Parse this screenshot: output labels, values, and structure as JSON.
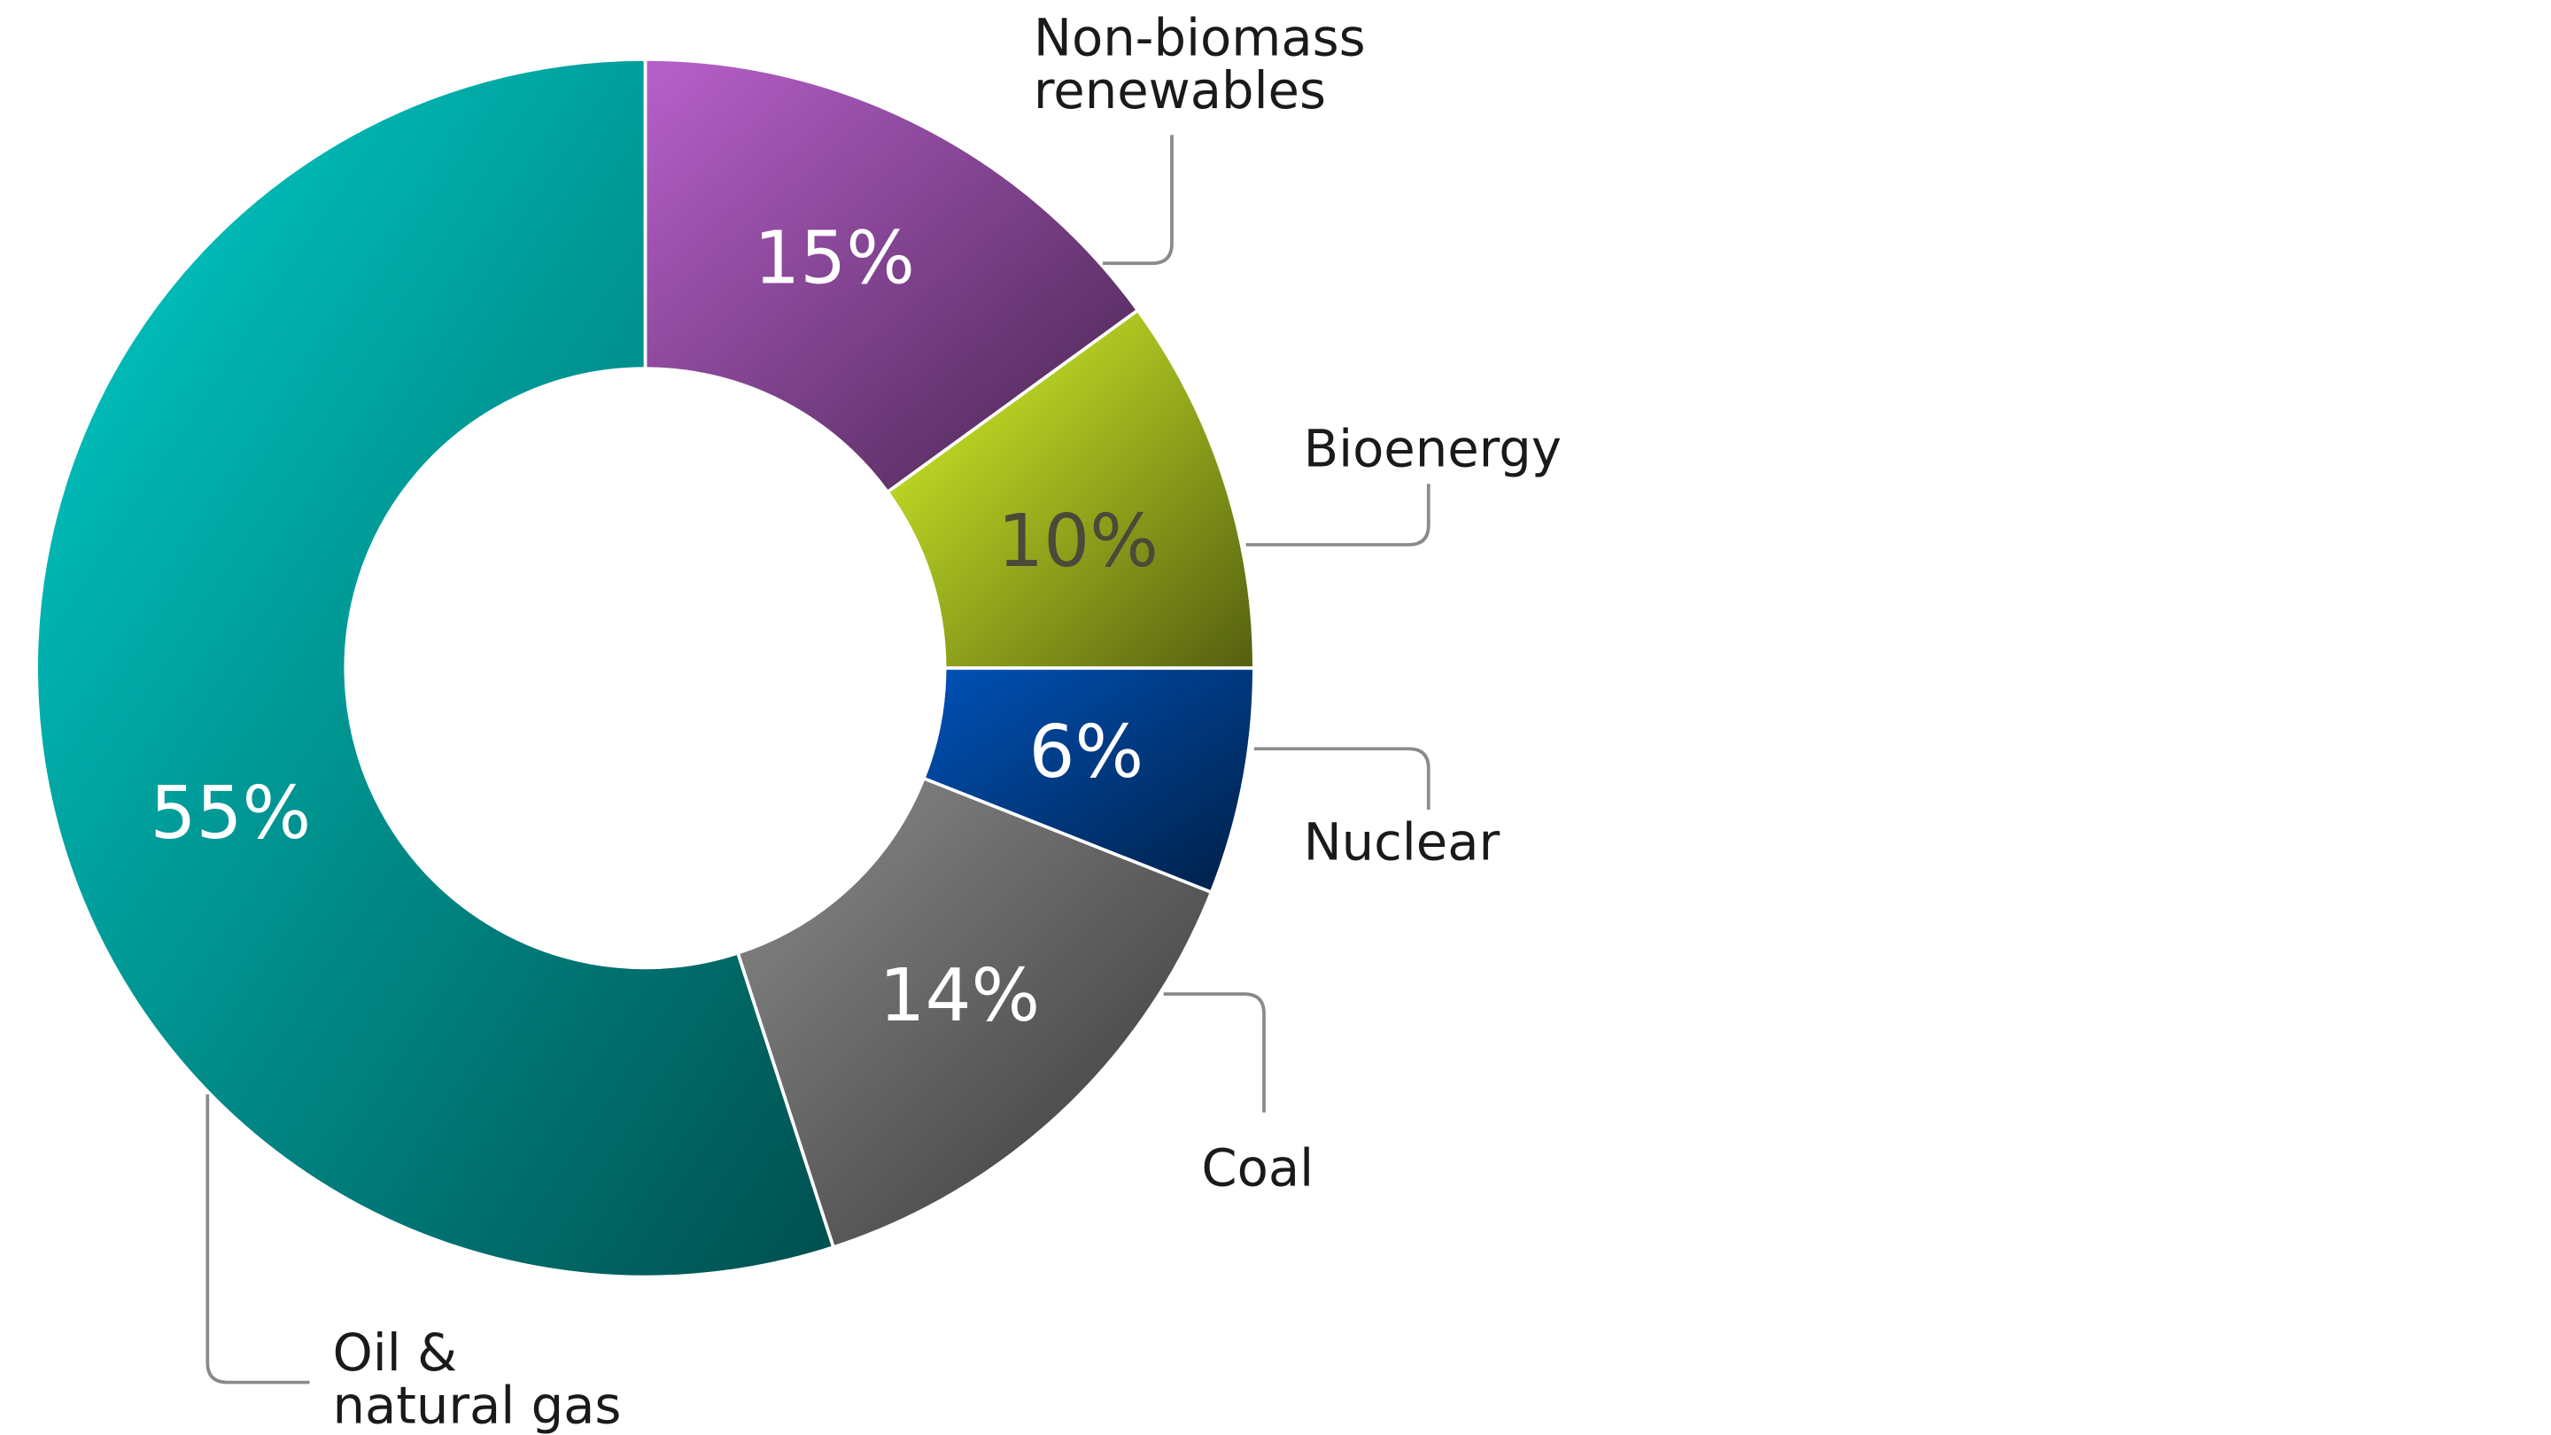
{
  "chart_data": {
    "type": "pie",
    "categories": [
      "Non-biomass renewables",
      "Bioenergy",
      "Nuclear",
      "Coal",
      "Oil & natural gas"
    ],
    "values": [
      15,
      10,
      6,
      14,
      55
    ],
    "value_labels": [
      "15%",
      "10%",
      "6%",
      "14%",
      "55%"
    ],
    "colors": [
      "#b860cc",
      "#dcfa2a",
      "#0052b8",
      "#8c8c8c",
      "#00d0cc"
    ]
  }
}
